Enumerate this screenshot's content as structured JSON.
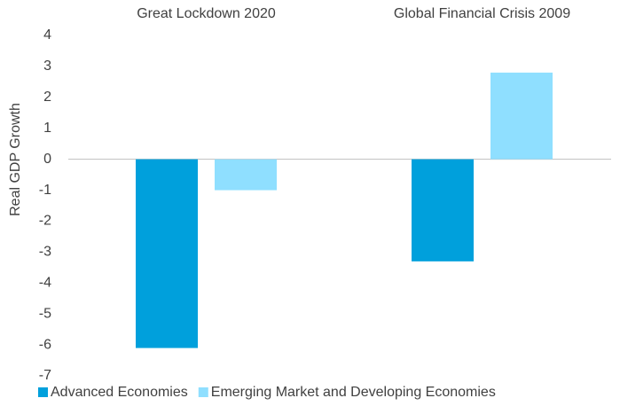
{
  "chart_data": {
    "type": "bar",
    "y_label": "Real GDP Growth",
    "categories": [
      "Great Lockdown 2020",
      "Global Financial Crisis 2009"
    ],
    "series": [
      {
        "name": "Advanced Economies",
        "color": "#00a0dc",
        "values": [
          -6.1,
          -3.3
        ]
      },
      {
        "name": "Emerging Market and Developing Economies",
        "color": "#8fdfff",
        "values": [
          -1.0,
          2.8
        ]
      }
    ],
    "ylim": [
      -7,
      4
    ],
    "yticks": [
      -7,
      -6,
      -5,
      -4,
      -3,
      -2,
      -1,
      0,
      1,
      2,
      3,
      4
    ],
    "grid": false,
    "legend": "bottom"
  }
}
